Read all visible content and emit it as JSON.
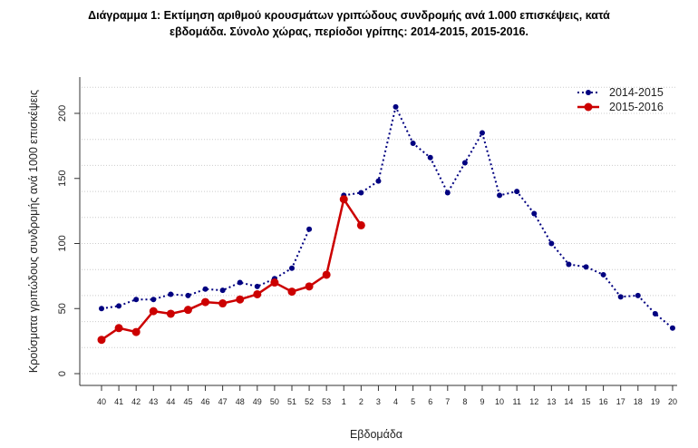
{
  "chart_data": {
    "type": "line",
    "title_lines": [
      "Διάγραμμα 1: Εκτίμηση αριθμού κρουσμάτων γριπώδους συνδρομής ανά 1.000 επισκέψεις, κατά",
      "εβδομάδα. Σύνολο χώρας, περίοδοι γρίπης:  2014-2015, 2015-2016."
    ],
    "xlabel": "Εβδομάδα",
    "ylabel": "Κρούσματα γριπώδους συνδρομής ανά 1000 επισκέψεις",
    "categories": [
      "40",
      "41",
      "42",
      "43",
      "44",
      "45",
      "46",
      "47",
      "48",
      "49",
      "50",
      "51",
      "52",
      "53",
      "1",
      "2",
      "3",
      "4",
      "5",
      "6",
      "7",
      "8",
      "9",
      "10",
      "11",
      "12",
      "13",
      "14",
      "15",
      "16",
      "17",
      "18",
      "19",
      "20"
    ],
    "ylim": [
      0,
      220
    ],
    "yticks": [
      0,
      50,
      100,
      150,
      200
    ],
    "grid": "horizontal dotted, every 20",
    "legend": "top-right",
    "series": [
      {
        "name": "2014-2015",
        "color": "#000080",
        "style": "dotted with small points",
        "values": [
          50,
          52,
          57,
          57,
          61,
          60,
          65,
          64,
          70,
          67,
          73,
          81,
          111,
          null,
          137,
          139,
          148,
          205,
          177,
          166,
          139,
          162,
          185,
          137,
          140,
          123,
          100,
          84,
          82,
          76,
          59,
          60,
          46,
          35
        ]
      },
      {
        "name": "2015-2016",
        "color": "#cc0000",
        "style": "solid with large points",
        "values": [
          26,
          35,
          32,
          48,
          46,
          49,
          55,
          54,
          57,
          61,
          70,
          63,
          67,
          76,
          134,
          114,
          null,
          null,
          null,
          null,
          null,
          null,
          null,
          null,
          null,
          null,
          null,
          null,
          null,
          null,
          null,
          null,
          null,
          null
        ]
      }
    ]
  }
}
